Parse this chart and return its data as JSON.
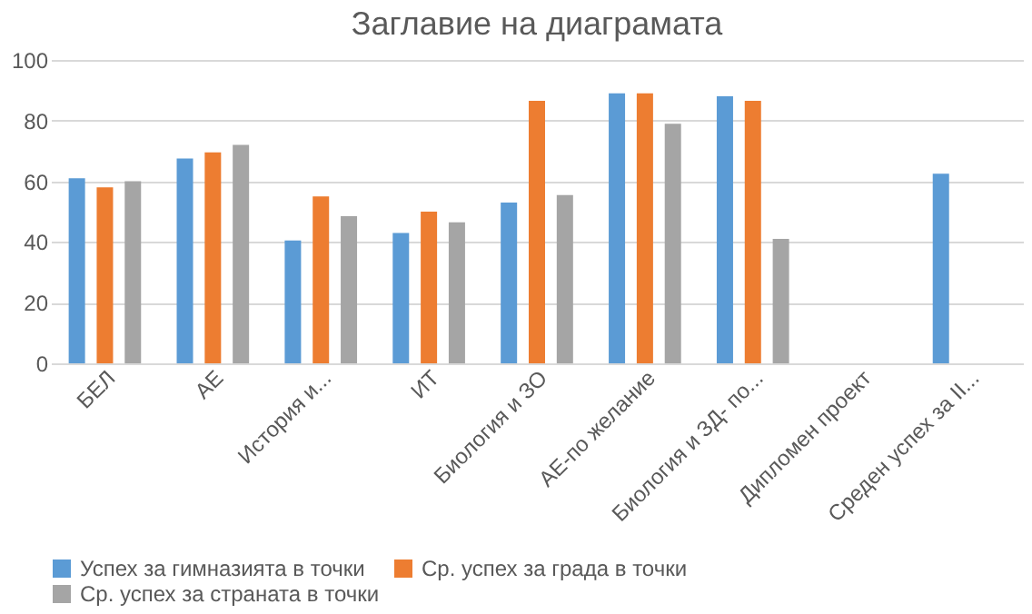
{
  "chart_data": {
    "type": "bar",
    "title": "Заглавие на диаграмата",
    "categories": [
      "БЕЛ",
      "АЕ",
      "История и...",
      "ИТ",
      "Биология и ЗО",
      "АЕ-по желание",
      "Биология и ЗД- по...",
      "Дипломен проект",
      "Среден успех за II..."
    ],
    "series": [
      {
        "name": "Успех за  гимназията  в точки",
        "color": "#5b9bd5",
        "values": [
          61,
          67.5,
          40.5,
          43,
          53,
          89,
          88,
          null,
          62.5
        ]
      },
      {
        "name": "Ср. успех за града в  точки",
        "color": "#ed7d31",
        "values": [
          58,
          69.5,
          55,
          50,
          86.5,
          89,
          86.5,
          null,
          null
        ]
      },
      {
        "name": "Ср. успех за страната в  точки",
        "color": "#a5a5a5",
        "values": [
          60,
          72,
          48.5,
          46.5,
          55.5,
          79,
          41,
          null,
          null
        ]
      }
    ],
    "ylim": [
      0,
      100
    ],
    "yticks": [
      0,
      20,
      40,
      60,
      80,
      100
    ],
    "grid": "y",
    "legend": "bottom"
  }
}
